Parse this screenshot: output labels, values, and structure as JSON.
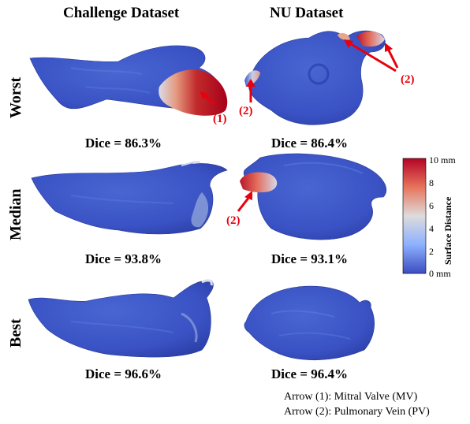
{
  "columns": [
    "Challenge Dataset",
    "NU Dataset"
  ],
  "rows": [
    {
      "label": "Worst",
      "dice": [
        "Dice = 86.3%",
        "Dice = 86.4%"
      ]
    },
    {
      "label": "Median",
      "dice": [
        "Dice = 93.8%",
        "Dice = 93.1%"
      ]
    },
    {
      "label": "Best",
      "dice": [
        "Dice = 96.6%",
        "Dice = 96.4%"
      ]
    }
  ],
  "arrow_labels": {
    "mv": "(1)",
    "pv": "(2)"
  },
  "colorbar": {
    "title": "Surface Distance",
    "ticks": [
      "10",
      "8",
      "6",
      "4",
      "2",
      "0"
    ],
    "unit": "mm",
    "colors": {
      "low": "#3a4fc1",
      "mid": "#dcdcdc",
      "high": "#b40426"
    }
  },
  "notes": [
    "Arrow (1): Mitral Valve (MV)",
    "Arrow (2): Pulmonary Vein (PV)"
  ],
  "arrow_color": "#e8000b"
}
